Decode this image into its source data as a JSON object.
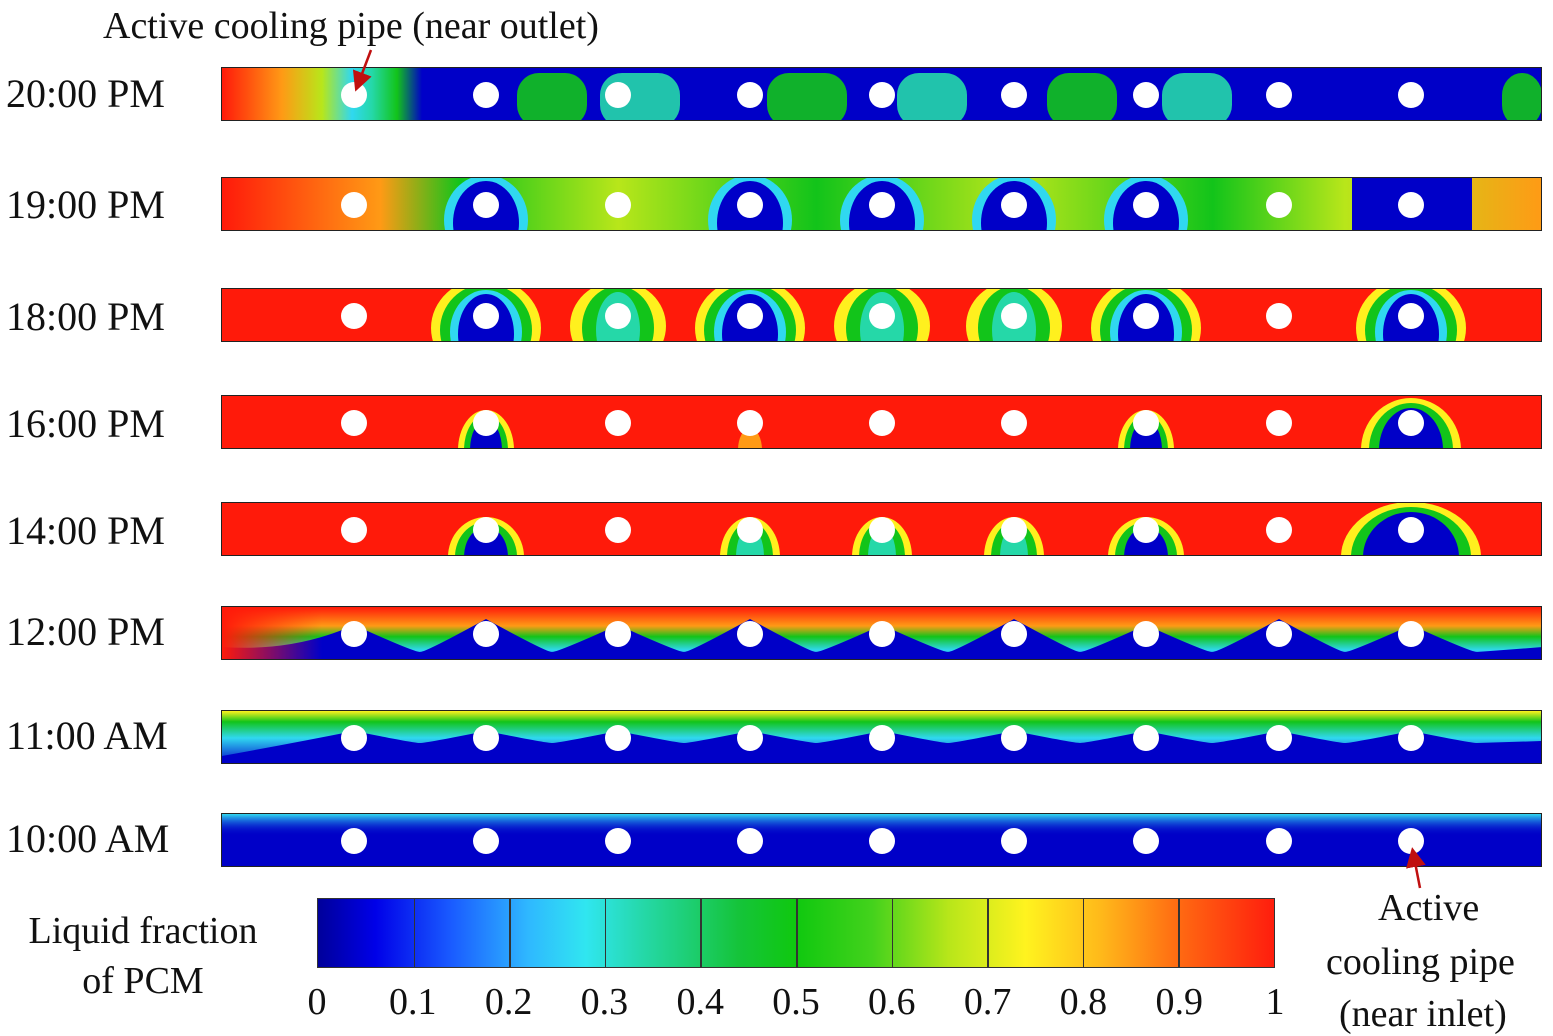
{
  "annotations": {
    "top": "Active cooling pipe (near outlet)",
    "bottom": [
      "Active",
      "cooling pipe",
      "(near inlet)"
    ]
  },
  "colorbar": {
    "title_line1": "Liquid fraction",
    "title_line2": "of PCM",
    "ticks": [
      "0",
      "0.1",
      "0.2",
      "0.3",
      "0.4",
      "0.5",
      "0.6",
      "0.7",
      "0.8",
      "0.9",
      "1"
    ]
  },
  "snapshots": [
    {
      "time": "20:00 PM",
      "state": "late-solidification"
    },
    {
      "time": "19:00 PM",
      "state": "solidifying"
    },
    {
      "time": "18:00 PM",
      "state": "mostly-liquid"
    },
    {
      "time": "16:00 PM",
      "state": "liquid"
    },
    {
      "time": "14:00 PM",
      "state": "liquid"
    },
    {
      "time": "12:00 PM",
      "state": "melting-top"
    },
    {
      "time": "11:00 AM",
      "state": "early-melting"
    },
    {
      "time": "10:00 AM",
      "state": "solid"
    }
  ],
  "colors": {
    "solid": "#0000c8",
    "liquid": "#ff1a0a",
    "mid": "#12c41a",
    "pipe": "#ffffff",
    "arrow": "#c01010"
  }
}
